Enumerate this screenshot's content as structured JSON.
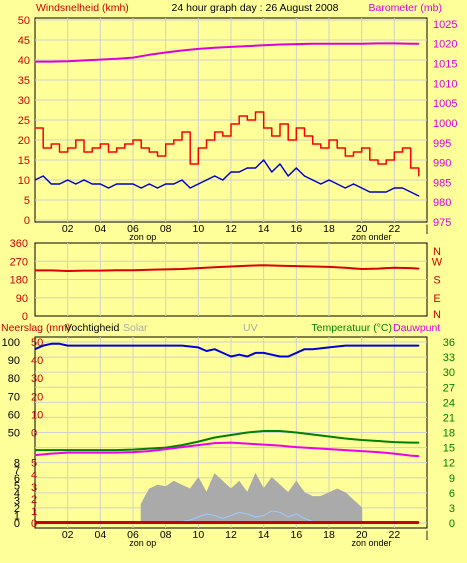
{
  "title": "24 hour graph day : 26 August 2008",
  "colors": {
    "background": "#ffff99",
    "frame": "#000000",
    "grid": "#d0d0d0",
    "wind_label": "#cc0000",
    "gust": "#ff0000",
    "avg_wind": "#0000cc",
    "barometer": "#dd00dd",
    "wind_direction": "#dd0000",
    "humidity": "#0000dd",
    "temperature": "#008000",
    "dewpoint": "#ee00ee",
    "temp_label": "#008000",
    "solar": "#aaaaaa",
    "uv_label": "#aaaaaa",
    "uv_series": "#99ccff",
    "rain": "#cc0000",
    "rain_baseline": "#cc0000"
  },
  "x_ticks": [
    "02",
    "04",
    "06",
    "08",
    "10",
    "12",
    "14",
    "16",
    "18",
    "20",
    "22"
  ],
  "sun_labels": {
    "sunrise": "zon op",
    "sunset": "zon onder"
  },
  "chart_data": [
    {
      "type": "line",
      "id": "wind-barometer",
      "left_label": "Windsnelheid (kmh)",
      "right_label": "Barometer (mb)",
      "title": "24 hour graph day : 26 August 2008",
      "y_left_ticks": [
        "0",
        "5",
        "10",
        "15",
        "20",
        "25",
        "30",
        "35",
        "40",
        "45",
        "50"
      ],
      "y_left_range": [
        0,
        50
      ],
      "y_right_ticks": [
        "975",
        "980",
        "985",
        "990",
        "995",
        "1000",
        "1005",
        "1010",
        "1015",
        "1020",
        "1025"
      ],
      "y_right_range": [
        975,
        1026.5
      ],
      "x_range": [
        0,
        24
      ],
      "series": [
        {
          "key": "gust",
          "axis": "left",
          "x": [
            0,
            0.5,
            1,
            1.5,
            2,
            2.5,
            3,
            3.5,
            4,
            4.5,
            5,
            5.5,
            6,
            6.5,
            7,
            7.5,
            8,
            8.5,
            9,
            9.5,
            10,
            10.5,
            11,
            11.5,
            12,
            12.5,
            13,
            13.5,
            14,
            14.5,
            15,
            15.5,
            16,
            16.5,
            17,
            17.5,
            18,
            18.5,
            19,
            19.5,
            20,
            20.5,
            21,
            21.5,
            22,
            22.5,
            23,
            23.5
          ],
          "values": [
            23,
            18,
            19,
            17,
            18,
            20,
            17,
            18,
            19,
            17,
            18,
            19,
            20,
            18,
            17,
            16,
            19,
            20,
            22,
            14,
            18,
            20,
            22,
            21,
            24,
            26,
            25,
            27,
            23,
            21,
            24,
            20,
            23,
            21,
            19,
            18,
            20,
            18,
            16,
            17,
            18,
            15,
            14,
            15,
            17,
            18,
            13,
            11
          ]
        },
        {
          "key": "avg_wind",
          "axis": "left",
          "x": [
            0,
            0.5,
            1,
            1.5,
            2,
            2.5,
            3,
            3.5,
            4,
            4.5,
            5,
            5.5,
            6,
            6.5,
            7,
            7.5,
            8,
            8.5,
            9,
            9.5,
            10,
            10.5,
            11,
            11.5,
            12,
            12.5,
            13,
            13.5,
            14,
            14.5,
            15,
            15.5,
            16,
            16.5,
            17,
            17.5,
            18,
            18.5,
            19,
            19.5,
            20,
            20.5,
            21,
            21.5,
            22,
            22.5,
            23,
            23.5
          ],
          "values": [
            10,
            11,
            9,
            9,
            10,
            9,
            10,
            9,
            9,
            8,
            9,
            9,
            9,
            8,
            9,
            8,
            9,
            9,
            10,
            8,
            9,
            10,
            11,
            10,
            12,
            12,
            13,
            13,
            15,
            12,
            14,
            11,
            13,
            11,
            10,
            9,
            10,
            9,
            8,
            9,
            8,
            7,
            7,
            7,
            8,
            8,
            7,
            6
          ]
        },
        {
          "key": "barometer",
          "axis": "right",
          "x": [
            0,
            1,
            2,
            3,
            4,
            5,
            6,
            7,
            8,
            9,
            10,
            11,
            12,
            13,
            14,
            15,
            16,
            17,
            18,
            19,
            20,
            21,
            22,
            23,
            23.5
          ],
          "values": [
            1015.5,
            1015.5,
            1015.6,
            1015.8,
            1016,
            1016.2,
            1016.5,
            1017.2,
            1017.8,
            1018.3,
            1018.7,
            1019,
            1019.2,
            1019.4,
            1019.6,
            1019.8,
            1019.9,
            1020,
            1020,
            1020,
            1020,
            1020.1,
            1020.1,
            1020,
            1020
          ]
        }
      ]
    },
    {
      "type": "line",
      "id": "wind-direction",
      "y_left_ticks": [
        "0",
        "90",
        "180",
        "270",
        "360"
      ],
      "y_left_range": [
        0,
        360
      ],
      "y_right_ticks": [
        "N",
        "W",
        "S",
        "E",
        "N"
      ],
      "x_range": [
        0,
        24
      ],
      "series": [
        {
          "key": "wind_direction",
          "axis": "left",
          "x": [
            0,
            1,
            2,
            3,
            4,
            5,
            6,
            7,
            8,
            9,
            10,
            11,
            12,
            13,
            14,
            15,
            16,
            17,
            18,
            19,
            20,
            21,
            22,
            23,
            23.5
          ],
          "values": [
            225,
            225,
            222,
            224,
            224,
            226,
            226,
            228,
            230,
            232,
            236,
            240,
            244,
            248,
            250,
            248,
            246,
            244,
            242,
            238,
            232,
            234,
            238,
            236,
            234
          ]
        }
      ]
    },
    {
      "type": "line",
      "id": "rain-humidity-temp",
      "labels": {
        "rain": "Neerslag (mm)",
        "humidity": "Vochtigheid",
        "solar": "Solar",
        "uv": "UV",
        "temperature": "Temperatuur (°C)",
        "dewpoint": "Dauwpunt"
      },
      "y_hum_ticks": [
        "50",
        "60",
        "70",
        "80",
        "90",
        "100"
      ],
      "y_hum_range": [
        50,
        100
      ],
      "y_rain_ticks": [
        "0",
        "10",
        "20",
        "30",
        "40",
        "50"
      ],
      "y_uv_ticks": [
        "0",
        "1",
        "2",
        "3",
        "4",
        "5",
        "6",
        "7",
        "8"
      ],
      "y_rain_small_ticks": [
        "0",
        "1",
        "2",
        "3",
        "4",
        "5"
      ],
      "y_temp_ticks": [
        "0",
        "3",
        "6",
        "9",
        "12",
        "15",
        "18",
        "21",
        "24",
        "27",
        "30",
        "33",
        "36"
      ],
      "y_temp_range": [
        0,
        36
      ],
      "x_range": [
        0,
        24
      ],
      "series": [
        {
          "key": "humidity",
          "axis": "humidity",
          "x": [
            0,
            0.5,
            1,
            1.5,
            2,
            3,
            4,
            5,
            6,
            7,
            8,
            9,
            10,
            10.5,
            11,
            11.5,
            12,
            12.5,
            13,
            13.5,
            14,
            14.5,
            15,
            15.5,
            16,
            16.5,
            17,
            18,
            19,
            20,
            21,
            22,
            23,
            23.5
          ],
          "values": [
            96,
            98,
            99,
            99,
            98,
            98,
            98,
            98,
            98,
            98,
            98,
            98,
            97,
            95,
            96,
            94,
            92,
            93,
            92,
            94,
            94,
            93,
            92,
            92,
            94,
            96,
            96,
            97,
            98,
            98,
            98,
            98,
            98,
            98
          ]
        },
        {
          "key": "temperature",
          "axis": "temp",
          "x": [
            0,
            1,
            2,
            3,
            4,
            5,
            6,
            7,
            8,
            9,
            10,
            11,
            12,
            13,
            14,
            15,
            16,
            17,
            18,
            19,
            20,
            21,
            22,
            23,
            23.5
          ],
          "values": [
            14.5,
            14.5,
            14.5,
            14.5,
            14.5,
            14.5,
            14.6,
            14.8,
            15,
            15.5,
            16.2,
            17,
            17.5,
            18,
            18.3,
            18.3,
            18,
            17.6,
            17.2,
            16.8,
            16.5,
            16.3,
            16.1,
            16,
            16
          ]
        },
        {
          "key": "dewpoint",
          "axis": "temp",
          "x": [
            0,
            1,
            2,
            3,
            4,
            5,
            6,
            7,
            8,
            9,
            10,
            11,
            12,
            13,
            14,
            15,
            16,
            17,
            18,
            19,
            20,
            21,
            22,
            23,
            23.5
          ],
          "values": [
            13.5,
            13.8,
            14,
            14,
            14,
            14,
            14.1,
            14.3,
            14.7,
            15.1,
            15.5,
            15.9,
            16,
            15.8,
            15.6,
            15.4,
            15.1,
            14.9,
            14.7,
            14.5,
            14.3,
            14.1,
            13.8,
            13.4,
            13.3
          ]
        },
        {
          "key": "solar",
          "axis": "uv",
          "x": [
            6.5,
            7,
            7.5,
            8,
            8.5,
            9,
            9.5,
            10,
            10.5,
            11,
            11.5,
            12,
            12.5,
            13,
            13.5,
            14,
            14.5,
            15,
            15.5,
            16,
            16.5,
            17,
            17.5,
            18,
            18.5,
            19,
            19.5,
            20
          ],
          "values": [
            2.5,
            4.5,
            5,
            4.8,
            5.5,
            5,
            4.5,
            6,
            4,
            6.5,
            5.5,
            4.5,
            5.5,
            4,
            6.5,
            4.5,
            6,
            5,
            4,
            5.5,
            4,
            3.5,
            3.5,
            4,
            4.5,
            4,
            3,
            2
          ]
        },
        {
          "key": "uv_series",
          "axis": "uv",
          "x": [
            9,
            9.5,
            10,
            10.5,
            11,
            11.5,
            12,
            12.5,
            13,
            13.5,
            14,
            14.5,
            15,
            15.5,
            16,
            16.5,
            17
          ],
          "values": [
            0.2,
            0.4,
            0.8,
            1.2,
            1,
            0.6,
            1,
            1.4,
            1.2,
            0.8,
            1,
            1.6,
            1.4,
            0.8,
            1.2,
            0.6,
            0.2
          ]
        },
        {
          "key": "rain",
          "axis": "rain",
          "x": [
            0,
            23.5
          ],
          "values": [
            0,
            0
          ]
        }
      ]
    }
  ]
}
